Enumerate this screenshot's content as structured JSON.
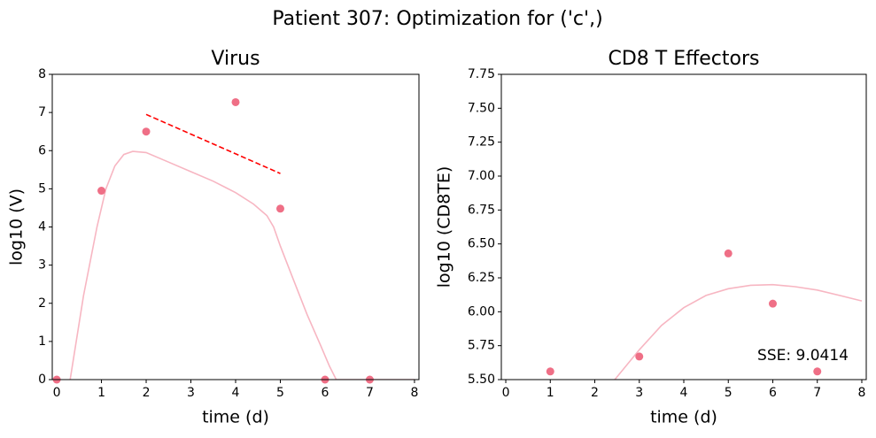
{
  "title": "Patient 307: Optimization for ('c',)",
  "chart_data": [
    {
      "type": "line",
      "title": "Virus",
      "xlabel": "time (d)",
      "ylabel": "log10 (V)",
      "xlim": [
        -0.1,
        8.1
      ],
      "ylim": [
        0,
        8
      ],
      "xticks": [
        0,
        1,
        2,
        3,
        4,
        5,
        6,
        7,
        8
      ],
      "yticks": [
        0,
        1,
        2,
        3,
        4,
        5,
        6,
        7,
        8
      ],
      "series": [
        {
          "style": "line",
          "color": "#f7b6c2",
          "x": [
            0.3,
            0.6,
            0.9,
            1.1,
            1.3,
            1.5,
            1.7,
            2.0,
            2.5,
            3.0,
            3.5,
            4.0,
            4.4,
            4.7,
            4.85,
            5.0,
            5.3,
            5.6,
            5.9,
            6.1,
            6.25,
            6.5,
            7.0,
            7.5,
            8.0
          ],
          "values": [
            0,
            2.2,
            4.0,
            5.0,
            5.6,
            5.9,
            5.98,
            5.95,
            5.7,
            5.45,
            5.2,
            4.9,
            4.6,
            4.3,
            4.0,
            3.5,
            2.6,
            1.7,
            0.9,
            0.35,
            0,
            0,
            0,
            0,
            0
          ]
        },
        {
          "style": "dashed",
          "color": "#ff0000",
          "x": [
            2,
            5
          ],
          "values": [
            6.95,
            5.4
          ]
        },
        {
          "style": "scatter",
          "color": "#ef6f86",
          "x": [
            0,
            1,
            2,
            4,
            5,
            6,
            7
          ],
          "values": [
            0,
            4.95,
            6.5,
            7.27,
            4.48,
            0,
            0
          ]
        }
      ]
    },
    {
      "type": "line",
      "title": "CD8 T Effectors",
      "xlabel": "time (d)",
      "ylabel": "log10 (CD8TE)",
      "xlim": [
        -0.1,
        8.1
      ],
      "ylim": [
        5.5,
        7.75
      ],
      "xticks": [
        0,
        1,
        2,
        3,
        4,
        5,
        6,
        7,
        8
      ],
      "yticks": [
        {
          "value": 5.5,
          "label": "5.50"
        },
        5.75,
        {
          "value": 6,
          "label": "6.00"
        },
        6.25,
        {
          "value": 6.5,
          "label": "6.50"
        },
        6.75,
        {
          "value": 7,
          "label": "7.00"
        },
        7.25,
        {
          "value": 7.5,
          "label": "7.50"
        },
        7.75
      ],
      "annotation": "SSE: 9.0414",
      "series": [
        {
          "style": "line",
          "color": "#f7b6c2",
          "x": [
            2.45,
            3.0,
            3.5,
            4.0,
            4.5,
            5.0,
            5.5,
            6.0,
            6.5,
            7.0,
            7.5,
            8.0
          ],
          "values": [
            5.5,
            5.72,
            5.9,
            6.03,
            6.12,
            6.17,
            6.195,
            6.2,
            6.185,
            6.16,
            6.12,
            6.08
          ]
        },
        {
          "style": "scatter",
          "color": "#ef6f86",
          "x": [
            1,
            3,
            5,
            6,
            7
          ],
          "values": [
            5.56,
            5.67,
            6.43,
            6.06,
            5.56
          ]
        }
      ]
    }
  ]
}
